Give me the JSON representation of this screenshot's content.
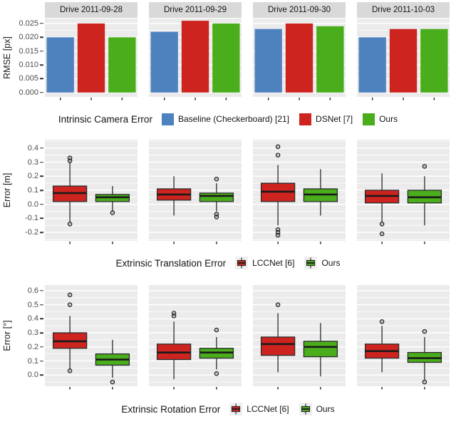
{
  "style": {
    "panel_bg": "#EBEBEB",
    "strip_bg": "#D9D9D9",
    "grid_color": "#FFFFFF",
    "box_stroke": "#2B2B2B",
    "median_color": "#1A1A1A",
    "tick_color": "#333333",
    "legend_key_bg": "#EFEFEF",
    "blue": "#4E82BE",
    "red": "#CE2420",
    "green": "#4AAD1C"
  },
  "facets": [
    "Drive 2011-09-28",
    "Drive 2011-09-29",
    "Drive 2011-09-30",
    "Drive 2011-10-03"
  ],
  "chart_data": [
    {
      "type": "bar",
      "legend_title": "Intrinsic Camera Error",
      "ylabel": "RMSE [px]",
      "y_tick_labels": [
        "0.025",
        "0.020",
        "0.015",
        "0.010",
        "0.005",
        "0.000"
      ],
      "y_ticks": [
        0.025,
        0.02,
        0.015,
        0.01,
        0.005,
        0.0
      ],
      "y_range": [
        -0.0016,
        0.0268
      ],
      "grid": true,
      "legend_position": "bottom",
      "series": [
        {
          "name": "Baseline (Checkerboard) [21]",
          "color": "#4E82BE"
        },
        {
          "name": "DSNet [7]",
          "color": "#CE2420"
        },
        {
          "name": "Ours",
          "color": "#4AAD1C"
        }
      ],
      "panels": [
        {
          "facet": "Drive 2011-09-28",
          "values": [
            0.02,
            0.025,
            0.02
          ]
        },
        {
          "facet": "Drive 2011-09-29",
          "values": [
            0.022,
            0.026,
            0.025
          ]
        },
        {
          "facet": "Drive 2011-09-30",
          "values": [
            0.023,
            0.025,
            0.024
          ]
        },
        {
          "facet": "Drive 2011-10-03",
          "values": [
            0.02,
            0.023,
            0.023
          ]
        }
      ]
    },
    {
      "type": "box",
      "legend_title": "Extrinsic Translation Error",
      "ylabel": "Error [m]",
      "y_tick_labels": [
        "0.4",
        "0.3",
        "0.2",
        "0.1",
        "0.0",
        "-0.1",
        "-0.2"
      ],
      "y_ticks": [
        0.4,
        0.3,
        0.2,
        0.1,
        0.0,
        -0.1,
        -0.2
      ],
      "y_range": [
        -0.26,
        0.46
      ],
      "grid": true,
      "legend_position": "bottom",
      "series": [
        {
          "name": "LCCNet [6]",
          "color": "#CE2420"
        },
        {
          "name": "Ours",
          "color": "#4AAD1C"
        }
      ],
      "panels": [
        {
          "facet": "Drive 2011-09-28",
          "boxes": [
            {
              "low": -0.13,
              "q1": 0.02,
              "median": 0.08,
              "q3": 0.13,
              "high": 0.3,
              "outliers": [
                0.31,
                0.33,
                -0.14
              ]
            },
            {
              "low": -0.05,
              "q1": 0.02,
              "median": 0.05,
              "q3": 0.07,
              "high": 0.13,
              "outliers": [
                -0.06
              ]
            }
          ]
        },
        {
          "facet": "Drive 2011-09-29",
          "boxes": [
            {
              "low": -0.08,
              "q1": 0.03,
              "median": 0.07,
              "q3": 0.11,
              "high": 0.2,
              "outliers": []
            },
            {
              "low": -0.05,
              "q1": 0.02,
              "median": 0.06,
              "q3": 0.08,
              "high": 0.15,
              "outliers": [
                0.18,
                -0.07,
                -0.09
              ]
            }
          ]
        },
        {
          "facet": "Drive 2011-09-30",
          "boxes": [
            {
              "low": -0.15,
              "q1": 0.02,
              "median": 0.09,
              "q3": 0.15,
              "high": 0.28,
              "outliers": [
                0.41,
                0.35,
                -0.18,
                -0.2,
                -0.22
              ]
            },
            {
              "low": -0.08,
              "q1": 0.02,
              "median": 0.07,
              "q3": 0.11,
              "high": 0.25,
              "outliers": []
            }
          ]
        },
        {
          "facet": "Drive 2011-10-03",
          "boxes": [
            {
              "low": -0.13,
              "q1": 0.01,
              "median": 0.06,
              "q3": 0.1,
              "high": 0.22,
              "outliers": [
                -0.14,
                -0.21
              ]
            },
            {
              "low": -0.15,
              "q1": 0.01,
              "median": 0.05,
              "q3": 0.1,
              "high": 0.2,
              "outliers": [
                0.27
              ]
            }
          ]
        }
      ]
    },
    {
      "type": "box",
      "legend_title": "Extrinsic Rotation Error",
      "ylabel": "Error [°]",
      "y_tick_labels": [
        "0.6",
        "0.5",
        "0.4",
        "0.3",
        "0.2",
        "0.1",
        "0.0"
      ],
      "y_ticks": [
        0.6,
        0.5,
        0.4,
        0.3,
        0.2,
        0.1,
        0.0
      ],
      "y_range": [
        -0.08,
        0.64
      ],
      "grid": true,
      "legend_position": "bottom",
      "series": [
        {
          "name": "LCCNet [6]",
          "color": "#CE2420"
        },
        {
          "name": "Ours",
          "color": "#4AAD1C"
        }
      ],
      "panels": [
        {
          "facet": "Drive 2011-09-28",
          "boxes": [
            {
              "low": 0.04,
              "q1": 0.19,
              "median": 0.24,
              "q3": 0.3,
              "high": 0.42,
              "outliers": [
                0.57,
                0.5,
                0.03
              ]
            },
            {
              "low": -0.02,
              "q1": 0.07,
              "median": 0.11,
              "q3": 0.15,
              "high": 0.25,
              "outliers": [
                -0.05
              ]
            }
          ]
        },
        {
          "facet": "Drive 2011-09-29",
          "boxes": [
            {
              "low": -0.03,
              "q1": 0.11,
              "median": 0.16,
              "q3": 0.22,
              "high": 0.38,
              "outliers": [
                0.44,
                0.42
              ]
            },
            {
              "low": 0.04,
              "q1": 0.12,
              "median": 0.16,
              "q3": 0.19,
              "high": 0.27,
              "outliers": [
                0.32,
                0.01
              ]
            }
          ]
        },
        {
          "facet": "Drive 2011-09-30",
          "boxes": [
            {
              "low": 0.02,
              "q1": 0.14,
              "median": 0.22,
              "q3": 0.27,
              "high": 0.44,
              "outliers": [
                0.5
              ]
            },
            {
              "low": -0.01,
              "q1": 0.13,
              "median": 0.2,
              "q3": 0.24,
              "high": 0.37,
              "outliers": []
            }
          ]
        },
        {
          "facet": "Drive 2011-10-03",
          "boxes": [
            {
              "low": 0.02,
              "q1": 0.12,
              "median": 0.17,
              "q3": 0.22,
              "high": 0.35,
              "outliers": [
                0.38
              ]
            },
            {
              "low": -0.04,
              "q1": 0.09,
              "median": 0.12,
              "q3": 0.16,
              "high": 0.27,
              "outliers": [
                0.31,
                -0.05
              ]
            }
          ]
        }
      ]
    }
  ]
}
